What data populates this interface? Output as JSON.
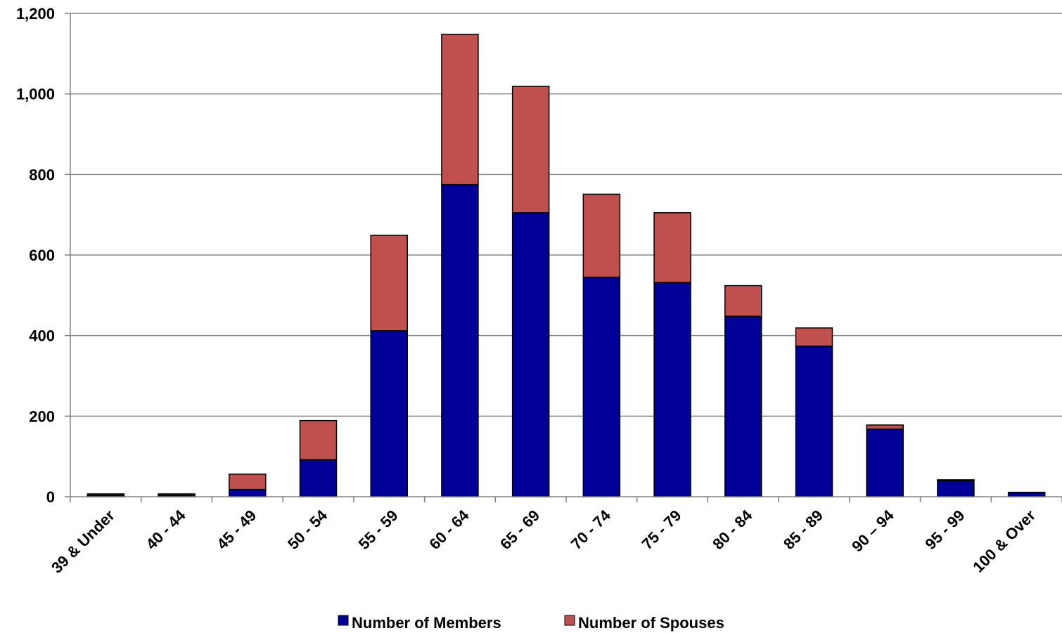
{
  "chart_data": {
    "type": "bar",
    "stacked": true,
    "categories": [
      "39 & Under",
      "40 - 44",
      "45 - 49",
      "50 - 54",
      "55 - 59",
      "60 - 64",
      "65 - 69",
      "70 - 74",
      "75 - 79",
      "80 - 84",
      "85 - 89",
      "90 – 94",
      "95 - 99",
      "100 & Over"
    ],
    "series": [
      {
        "name": "Number of Members",
        "color": "#000099",
        "values": [
          4,
          4,
          18,
          92,
          412,
          775,
          705,
          545,
          532,
          448,
          374,
          168,
          40,
          10
        ]
      },
      {
        "name": "Number of Spouses",
        "color": "#C0504D",
        "values": [
          3,
          3,
          38,
          97,
          237,
          373,
          314,
          206,
          173,
          76,
          45,
          10,
          2,
          1
        ]
      }
    ],
    "ylim": [
      0,
      1200
    ],
    "yticks": [
      0,
      200,
      400,
      600,
      800,
      1000,
      1200
    ],
    "ytick_labels": [
      "0",
      "200",
      "400",
      "600",
      "800",
      "1,000",
      "1,200"
    ],
    "title": "",
    "xlabel": "",
    "ylabel": "",
    "grid": true,
    "legend_position": "bottom"
  }
}
